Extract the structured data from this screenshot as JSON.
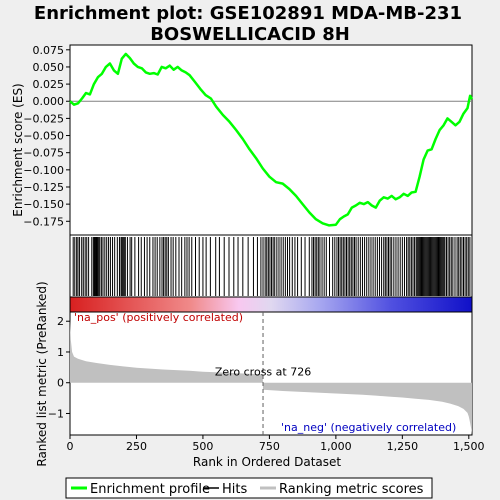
{
  "chart_data": {
    "type": "line",
    "title_line1": "Enrichment plot: GSE102891 MDA-MB-231",
    "title_line2": "BOSWELLICACID 8H",
    "top_panel": {
      "ylabel": "Enrichment score (ES)",
      "ylim": [
        -0.195,
        0.082
      ],
      "yticks": [
        0.075,
        0.05,
        0.025,
        0.0,
        -0.025,
        -0.05,
        -0.075,
        -0.1,
        -0.125,
        -0.15,
        -0.175
      ],
      "ytick_labels": [
        "0.075",
        "0.050",
        "0.025",
        "0.000",
        "−0.025",
        "−0.050",
        "−0.075",
        "−0.100",
        "−0.125",
        "−0.150",
        "−0.175"
      ],
      "es_curve": {
        "name": "Enrichment profile",
        "color": "#00ff00",
        "x": [
          0,
          15,
          30,
          45,
          60,
          75,
          90,
          105,
          120,
          135,
          150,
          165,
          180,
          195,
          210,
          225,
          240,
          255,
          270,
          285,
          300,
          315,
          330,
          345,
          360,
          375,
          390,
          405,
          420,
          435,
          450,
          470,
          490,
          510,
          530,
          550,
          575,
          600,
          625,
          650,
          675,
          700,
          725,
          750,
          775,
          800,
          825,
          850,
          875,
          900,
          925,
          950,
          975,
          1000,
          1015,
          1030,
          1045,
          1060,
          1075,
          1090,
          1105,
          1120,
          1135,
          1150,
          1165,
          1180,
          1195,
          1210,
          1225,
          1240,
          1255,
          1270,
          1285,
          1300,
          1315,
          1330,
          1345,
          1360,
          1375,
          1390,
          1405,
          1420,
          1435,
          1450,
          1465,
          1480,
          1495,
          1505,
          1512
        ],
        "y": [
          0.0,
          -0.005,
          -0.003,
          0.004,
          0.012,
          0.01,
          0.025,
          0.035,
          0.04,
          0.05,
          0.055,
          0.045,
          0.04,
          0.062,
          0.069,
          0.063,
          0.055,
          0.05,
          0.048,
          0.042,
          0.04,
          0.041,
          0.039,
          0.05,
          0.048,
          0.052,
          0.046,
          0.05,
          0.045,
          0.042,
          0.038,
          0.028,
          0.018,
          0.009,
          0.004,
          -0.008,
          -0.02,
          -0.03,
          -0.042,
          -0.055,
          -0.07,
          -0.083,
          -0.098,
          -0.11,
          -0.118,
          -0.12,
          -0.128,
          -0.138,
          -0.15,
          -0.162,
          -0.172,
          -0.178,
          -0.181,
          -0.18,
          -0.172,
          -0.168,
          -0.165,
          -0.155,
          -0.152,
          -0.148,
          -0.15,
          -0.147,
          -0.152,
          -0.155,
          -0.145,
          -0.14,
          -0.142,
          -0.138,
          -0.143,
          -0.14,
          -0.135,
          -0.138,
          -0.133,
          -0.132,
          -0.11,
          -0.085,
          -0.072,
          -0.07,
          -0.055,
          -0.042,
          -0.035,
          -0.025,
          -0.03,
          -0.035,
          -0.03,
          -0.018,
          -0.01,
          0.008,
          0.003
        ]
      }
    },
    "hits_panel": {
      "name": "Hits",
      "color": "#000000",
      "positions": [
        12,
        18,
        25,
        30,
        36,
        44,
        50,
        57,
        63,
        70,
        82,
        88,
        92,
        95,
        98,
        101,
        104,
        108,
        112,
        118,
        124,
        131,
        138,
        145,
        152,
        160,
        168,
        178,
        186,
        192,
        196,
        200,
        204,
        208,
        216,
        226,
        232,
        244,
        258,
        268,
        280,
        290,
        300,
        312,
        320,
        328,
        338,
        346,
        352,
        358,
        364,
        370,
        380,
        388,
        398,
        410,
        420,
        432,
        440,
        448,
        458,
        472,
        486,
        500,
        512,
        528,
        548,
        562,
        580,
        598,
        616,
        632,
        650,
        670,
        690,
        705,
        718,
        726,
        734,
        740,
        746,
        752,
        758,
        764,
        770,
        778,
        786,
        794,
        802,
        810,
        818,
        826,
        836,
        846,
        856,
        870,
        884,
        900,
        910,
        916,
        922,
        928,
        934,
        940,
        948,
        956,
        964,
        976,
        988,
        996,
        1004,
        1010,
        1016,
        1022,
        1028,
        1034,
        1040,
        1046,
        1052,
        1058,
        1064,
        1070,
        1076,
        1084,
        1092,
        1100,
        1108,
        1116,
        1124,
        1132,
        1140,
        1148,
        1156,
        1164,
        1172,
        1180,
        1186,
        1192,
        1198,
        1204,
        1210,
        1218,
        1226,
        1234,
        1242,
        1250,
        1258,
        1266,
        1272,
        1278,
        1284,
        1290,
        1296,
        1302,
        1306,
        1310,
        1314,
        1318,
        1322,
        1326,
        1330,
        1334,
        1338,
        1342,
        1346,
        1350,
        1354,
        1358,
        1362,
        1366,
        1370,
        1374,
        1378,
        1382,
        1386,
        1390,
        1394,
        1398,
        1402,
        1406,
        1410,
        1416,
        1422,
        1428,
        1434,
        1440,
        1448,
        1456,
        1462,
        1468,
        1474,
        1480,
        1486,
        1492,
        1498,
        1504
      ]
    },
    "heatmap_band": {
      "left_color": "#ff0000",
      "mid_color": "#ffffff",
      "right_color": "#0000ff"
    },
    "bottom_panel": {
      "ylabel": "Ranked list metric (PreRanked)",
      "ylim": [
        -1.7,
        2.3
      ],
      "yticks": [
        2,
        1,
        0,
        -1
      ],
      "ytick_labels": [
        "2",
        "1",
        "0",
        "−1"
      ],
      "series_name": "Ranking metric scores",
      "color": "#c0c0c0",
      "metric_x": [
        0,
        3,
        8,
        15,
        30,
        60,
        100,
        150,
        200,
        250,
        300,
        350,
        400,
        450,
        500,
        550,
        600,
        650,
        700,
        725,
        726,
        727,
        750,
        800,
        850,
        900,
        950,
        1000,
        1050,
        1100,
        1150,
        1200,
        1250,
        1300,
        1350,
        1400,
        1430,
        1460,
        1480,
        1495,
        1500,
        1505,
        1510,
        1512
      ],
      "metric_y": [
        2.05,
        1.4,
        1.0,
        0.85,
        0.78,
        0.7,
        0.64,
        0.58,
        0.53,
        0.49,
        0.46,
        0.43,
        0.41,
        0.39,
        0.36,
        0.34,
        0.32,
        0.3,
        0.285,
        0.28,
        -0.22,
        -0.23,
        -0.24,
        -0.27,
        -0.29,
        -0.31,
        -0.33,
        -0.35,
        -0.37,
        -0.39,
        -0.42,
        -0.45,
        -0.48,
        -0.52,
        -0.56,
        -0.62,
        -0.68,
        -0.76,
        -0.85,
        -0.98,
        -1.1,
        -1.3,
        -1.55,
        -1.68
      ],
      "zero_cross_x": 726,
      "zero_cross_label": "Zero cross at 726",
      "pos_label": "'na_pos' (positively correlated)",
      "neg_label": "'na_neg' (negatively correlated)"
    },
    "x_axis": {
      "label": "Rank in Ordered Dataset",
      "xlim": [
        0,
        1512
      ],
      "ticks": [
        0,
        250,
        500,
        750,
        1000,
        1250,
        1500
      ],
      "tick_labels": [
        "0",
        "250",
        "500",
        "750",
        "1,000",
        "1,250",
        "1,500"
      ]
    },
    "legend": {
      "placement": "bottom",
      "items": [
        {
          "label": "Enrichment profile",
          "color": "#00ff00"
        },
        {
          "label": "Hits",
          "color": "#000000"
        },
        {
          "label": "Ranking metric scores",
          "color": "#c0c0c0"
        }
      ]
    }
  }
}
